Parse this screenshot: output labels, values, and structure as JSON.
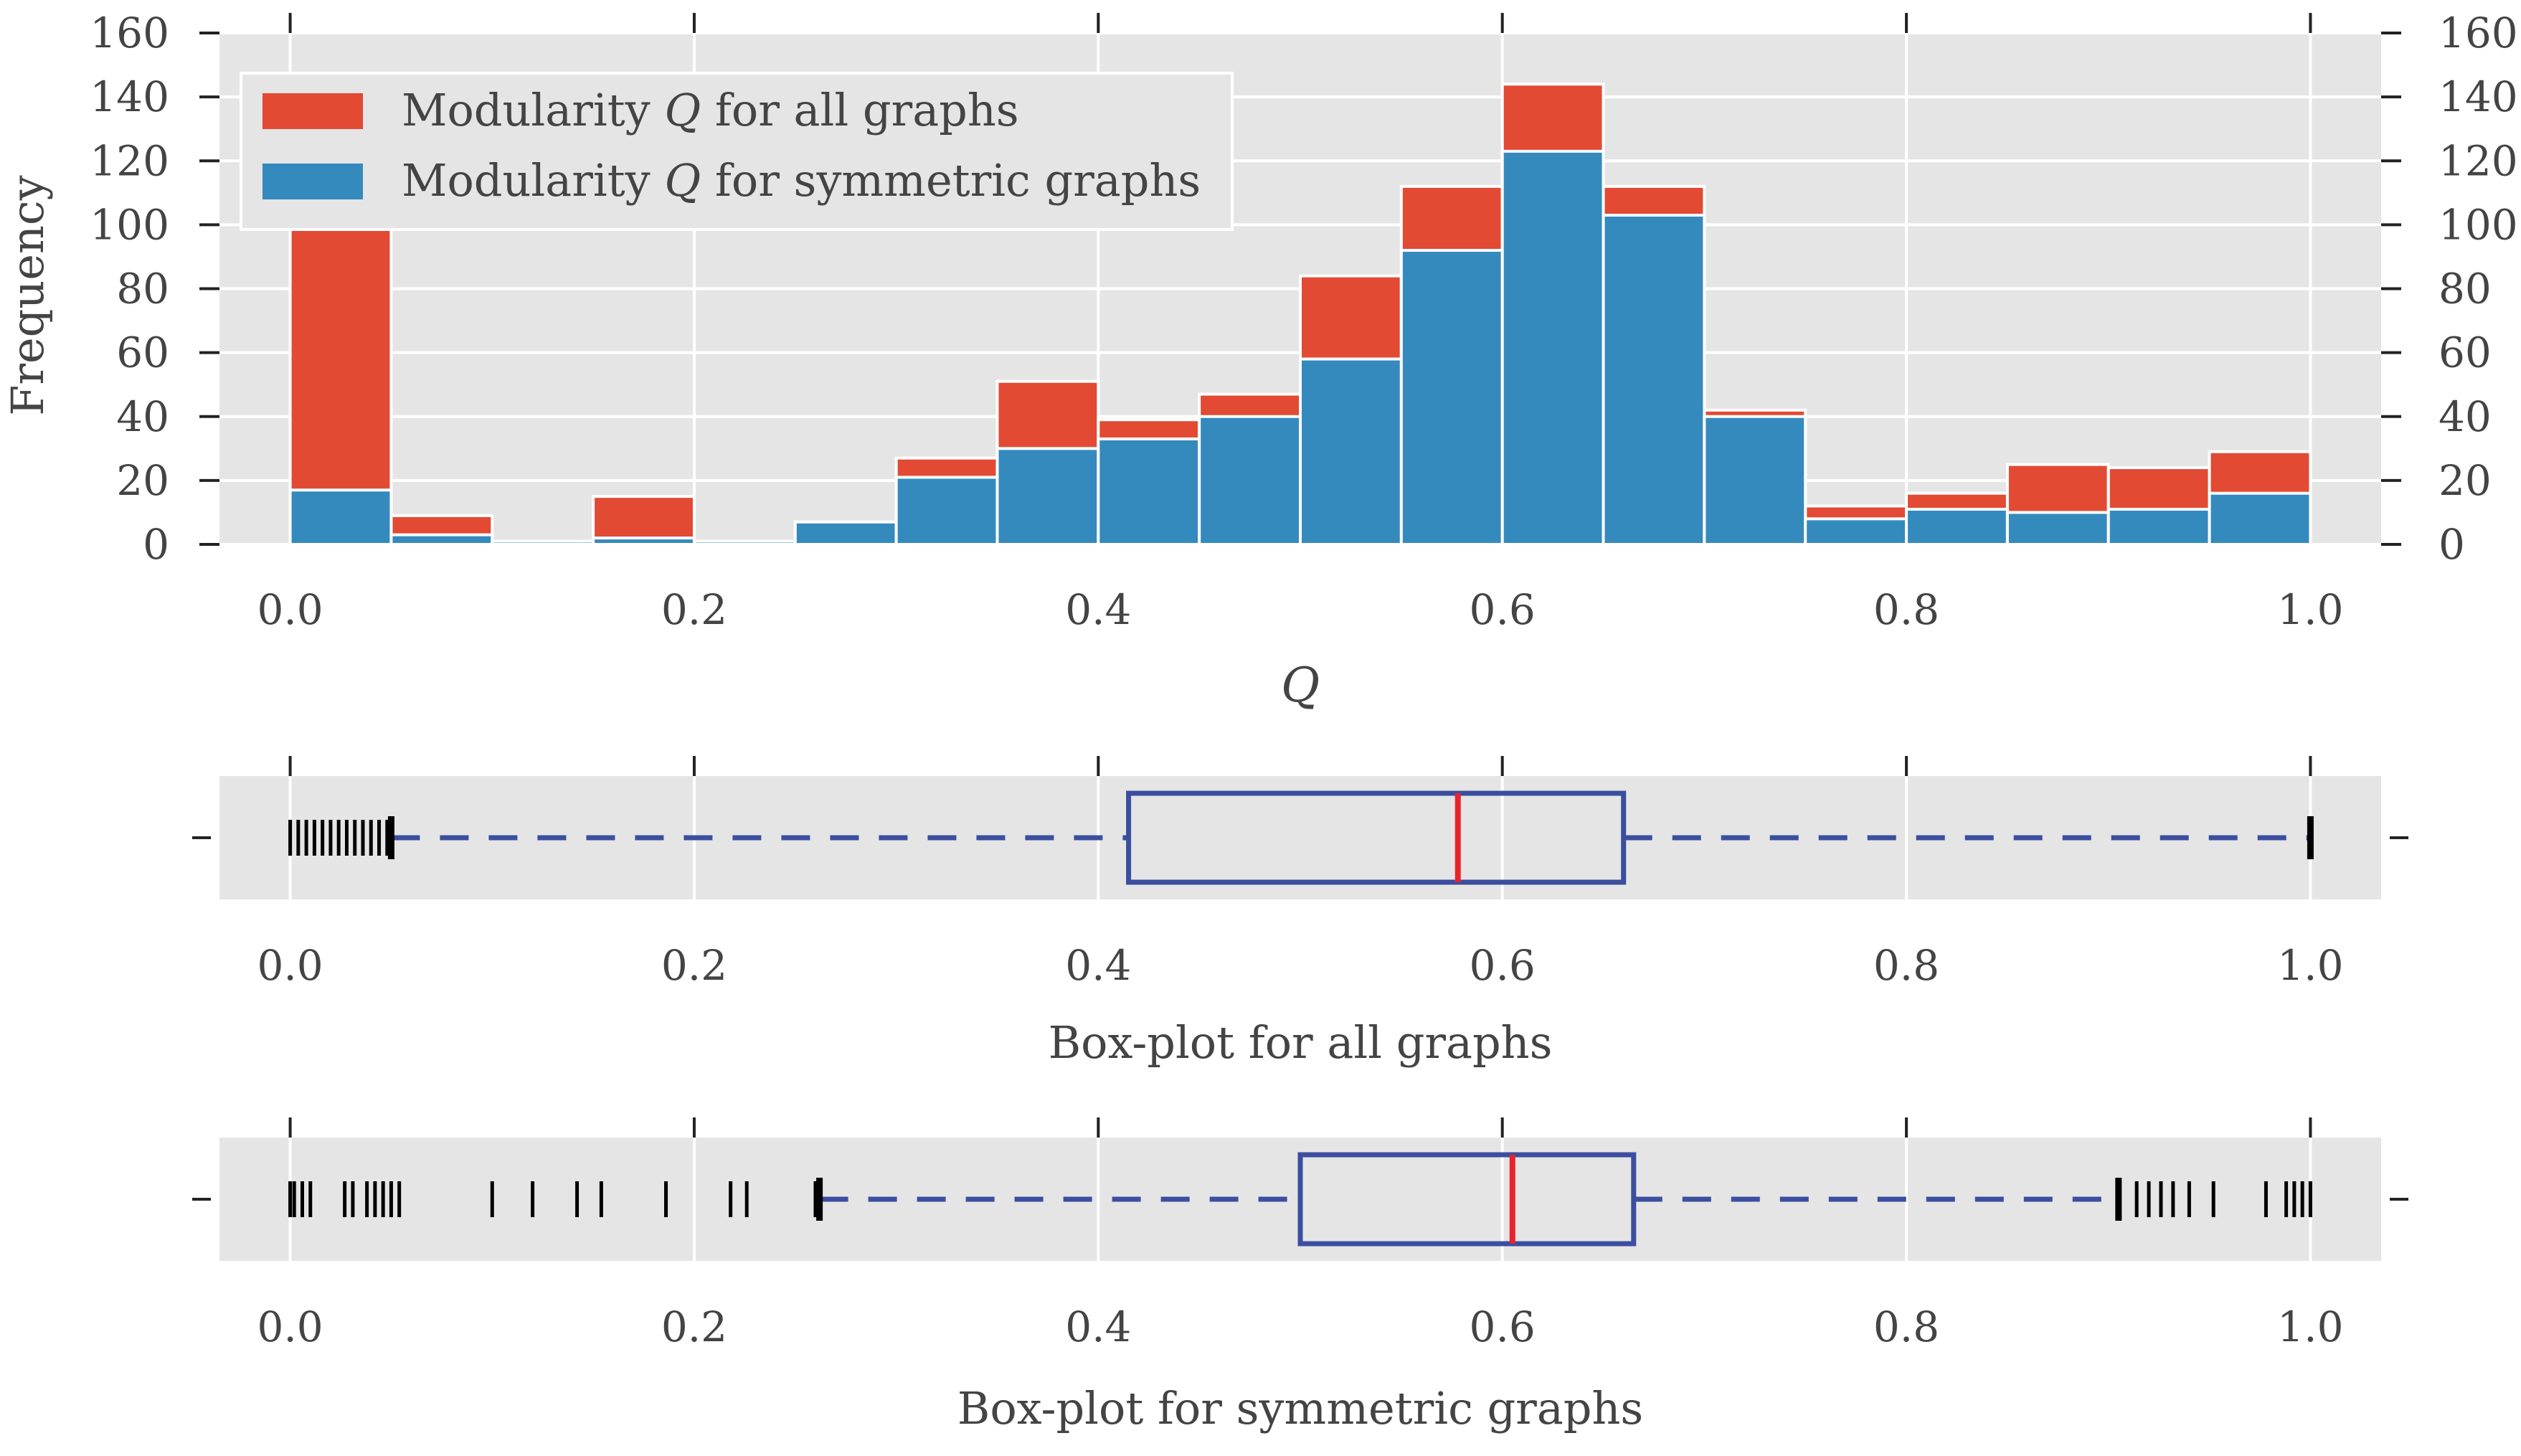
{
  "colors": {
    "plot_bg": "#e5e5e5",
    "grid": "#ffffff",
    "all_graphs": "#e24a33",
    "symmetric_graphs": "#348abd",
    "box": "#3b4ea0",
    "median": "#e8242a",
    "flier": "#000000",
    "text": "#444444"
  },
  "chart_data": [
    {
      "type": "bar",
      "subtype": "overlaid-histogram",
      "xlabel": "Q",
      "ylabel": "Frequency",
      "xlim": [
        -0.035,
        1.035
      ],
      "ylim": [
        0,
        160
      ],
      "x_ticks": [
        "0.0",
        "0.2",
        "0.4",
        "0.6",
        "0.8",
        "1.0"
      ],
      "y_ticks": [
        "0",
        "20",
        "40",
        "60",
        "80",
        "100",
        "120",
        "140",
        "160"
      ],
      "grid": true,
      "legend_position": "top-left",
      "bin_width": 0.05,
      "bin_starts": [
        0.0,
        0.05,
        0.1,
        0.15,
        0.2,
        0.25,
        0.3,
        0.35,
        0.4,
        0.45,
        0.5,
        0.55,
        0.6,
        0.65,
        0.7,
        0.75,
        0.8,
        0.85,
        0.9,
        0.95
      ],
      "series": [
        {
          "name": "Modularity Q for all graphs",
          "legend_prefix": "Modularity",
          "legend_var": "Q",
          "legend_suffix": "for all graphs",
          "color_key": "all_graphs",
          "values": [
            100,
            9,
            1,
            15,
            1,
            7,
            27,
            51,
            39,
            47,
            84,
            112,
            144,
            112,
            42,
            12,
            16,
            25,
            24,
            29
          ]
        },
        {
          "name": "Modularity Q for symmetric graphs",
          "legend_prefix": "Modularity",
          "legend_var": "Q",
          "legend_suffix": "for symmetric graphs",
          "color_key": "symmetric_graphs",
          "values": [
            17,
            3,
            1,
            2,
            1,
            7,
            21,
            30,
            33,
            40,
            58,
            92,
            123,
            103,
            40,
            8,
            11,
            10,
            11,
            16
          ]
        }
      ]
    },
    {
      "type": "boxplot",
      "xlabel": "Box-plot for all graphs",
      "xlim": [
        -0.035,
        1.035
      ],
      "x_ticks": [
        "0.0",
        "0.2",
        "0.4",
        "0.6",
        "0.8",
        "1.0"
      ],
      "whisker_low": 0.05,
      "q1": 0.415,
      "median": 0.578,
      "q3": 0.66,
      "whisker_high": 1.0,
      "fliers": [
        0.0,
        0.004,
        0.008,
        0.012,
        0.016,
        0.02,
        0.024,
        0.028,
        0.032,
        0.036,
        0.04,
        0.044,
        0.048,
        0.05
      ]
    },
    {
      "type": "boxplot",
      "xlabel": "Box-plot for symmetric graphs",
      "xlim": [
        -0.035,
        1.035
      ],
      "x_ticks": [
        "0.0",
        "0.2",
        "0.4",
        "0.6",
        "0.8",
        "1.0"
      ],
      "whisker_low": 0.262,
      "q1": 0.5,
      "median": 0.605,
      "q3": 0.665,
      "whisker_high": 0.905,
      "fliers": [
        0.0,
        0.002,
        0.006,
        0.01,
        0.027,
        0.031,
        0.038,
        0.042,
        0.046,
        0.05,
        0.054,
        0.1,
        0.12,
        0.142,
        0.154,
        0.186,
        0.218,
        0.226,
        0.26,
        0.905,
        0.914,
        0.92,
        0.926,
        0.932,
        0.94,
        0.952,
        0.978,
        0.988,
        0.992,
        0.996,
        1.0
      ]
    }
  ]
}
